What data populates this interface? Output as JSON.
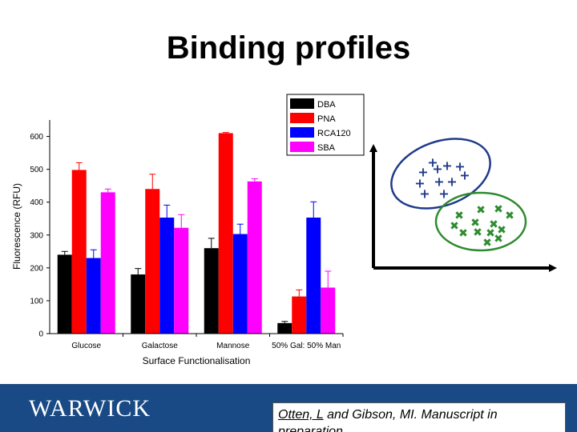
{
  "slide": {
    "title": "Binding profiles"
  },
  "chart_data": {
    "type": "bar",
    "xlabel": "Surface Functionalisation",
    "ylabel": "Fluorescence (RFU)",
    "ylim": [
      0,
      650
    ],
    "yticks": [
      0,
      100,
      200,
      300,
      400,
      500,
      600
    ],
    "categories": [
      "Glucose",
      "Galactose",
      "Mannose",
      "50% Gal: 50% Man"
    ],
    "series": [
      {
        "name": "DBA",
        "color": "#000000",
        "values": [
          240,
          180,
          260,
          32
        ],
        "errors": [
          10,
          18,
          30,
          5
        ]
      },
      {
        "name": "PNA",
        "color": "#ff0000",
        "values": [
          498,
          440,
          610,
          113
        ],
        "errors": [
          22,
          45,
          2,
          20
        ]
      },
      {
        "name": "RCA120",
        "color": "#0000ff",
        "values": [
          230,
          353,
          303,
          353
        ],
        "errors": [
          25,
          38,
          30,
          48
        ]
      },
      {
        "name": "SBA",
        "color": "#ff00ff",
        "values": [
          430,
          322,
          463,
          140
        ],
        "errors": [
          10,
          40,
          8,
          50
        ]
      }
    ],
    "legend_position": "top-right",
    "grid": false,
    "error_bars": true
  },
  "footer": {
    "logo_text": "WARWICK",
    "citation_author": "Otten, L",
    "citation_rest": " and Gibson, MI. Manuscript in preparation"
  },
  "diagram": {
    "group1_color": "#1f3a8a",
    "group2_color": "#2e8b2e",
    "group1_marker": "+",
    "group2_marker": "x"
  }
}
